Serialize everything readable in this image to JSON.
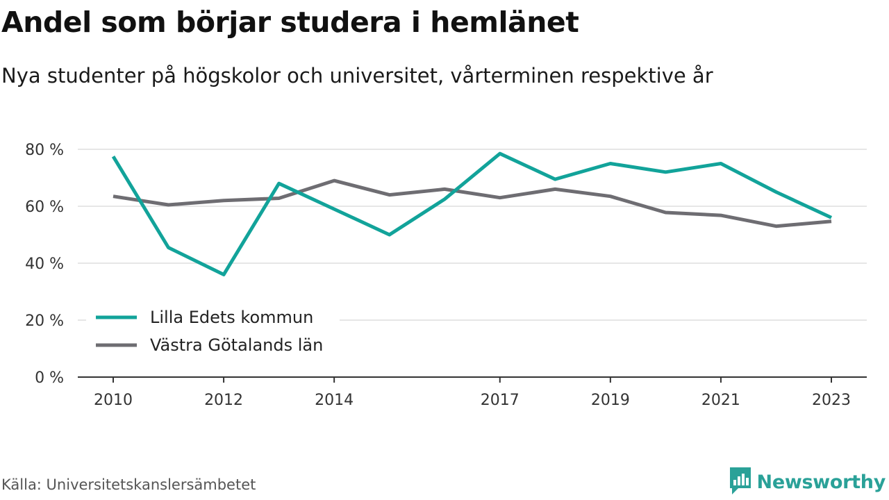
{
  "title": "Andel som börjar studera i hemlänet",
  "subtitle": "Nya studenter på högskolor och universitet, vårterminen respektive år",
  "source": "Källa: Universitetskanslersämbetet",
  "brand": {
    "name": "Newsworthy",
    "icon": "bar-chart-speech-bubble-icon",
    "color": "#2aa198"
  },
  "colors": {
    "grid": "#dddddd",
    "axis": "#333333"
  },
  "chart_data": {
    "type": "line",
    "x": [
      2010,
      2011,
      2012,
      2013,
      2014,
      2015,
      2016,
      2017,
      2018,
      2019,
      2020,
      2021,
      2022,
      2023
    ],
    "x_ticks": [
      "2010",
      "2012",
      "2014",
      "2017",
      "2019",
      "2021",
      "2023"
    ],
    "y_ticks": [
      "0 %",
      "20 %",
      "40 %",
      "60 %",
      "80 %"
    ],
    "ylim": [
      0,
      80
    ],
    "grid": true,
    "legend_position": "bottom-left",
    "series": [
      {
        "name": "Lilla Edets kommun",
        "color": "#12a39a",
        "values": [
          77.5,
          45.5,
          36,
          68,
          59,
          50,
          62.5,
          78.5,
          69.5,
          75,
          72,
          75,
          65,
          56
        ]
      },
      {
        "name": "Västra Götalands län",
        "color": "#6e6d72",
        "values": [
          63.5,
          60.5,
          62,
          62.8,
          69,
          64,
          66,
          63,
          66,
          63.5,
          57.8,
          56.8,
          53,
          54.7
        ]
      }
    ]
  }
}
